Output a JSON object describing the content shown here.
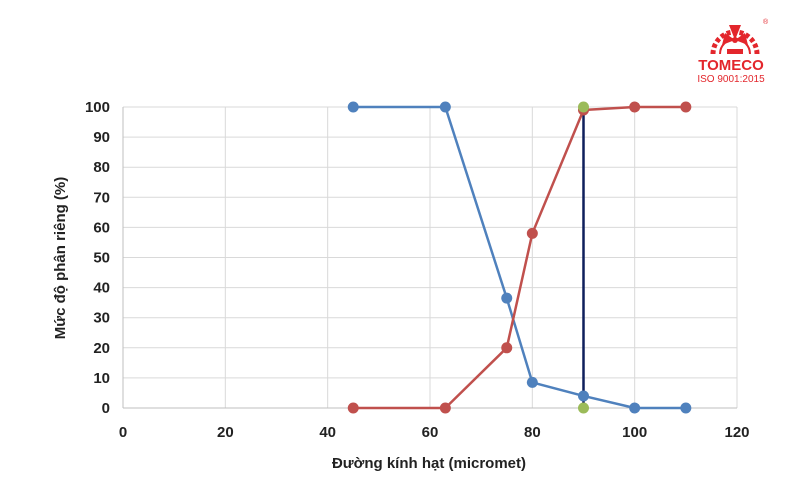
{
  "chart_data": {
    "type": "line",
    "title": "",
    "xlabel": "Đường kính hạt (micromet)",
    "ylabel": "Mức độ phân riêng (%)",
    "xlim": [
      0,
      120
    ],
    "ylim": [
      0,
      100
    ],
    "xticks": [
      "0",
      "20",
      "40",
      "60",
      "80",
      "100",
      "120"
    ],
    "yticks": [
      "0",
      "10",
      "20",
      "30",
      "40",
      "50",
      "60",
      "70",
      "80",
      "90",
      "100"
    ],
    "grid": true,
    "legend": "none",
    "series": [
      {
        "color": "#4F81BD",
        "x": [
          45,
          63,
          75,
          80,
          90,
          100,
          110
        ],
        "y": [
          100,
          100,
          36.5,
          8.5,
          4,
          0,
          0
        ]
      },
      {
        "color": "#C0504D",
        "x": [
          45,
          63,
          75,
          80,
          90,
          100,
          110
        ],
        "y": [
          0,
          0,
          20,
          58,
          99,
          100,
          100
        ]
      }
    ],
    "marker_line": {
      "color": "#0F1F5C",
      "point_color": "#9BBB59",
      "x": 90,
      "y": [
        0,
        100
      ]
    }
  },
  "logo": {
    "name": "TOMECO",
    "certification": "ISO 9001:2015",
    "trademark": "®",
    "brand_color": "#E3262C"
  }
}
